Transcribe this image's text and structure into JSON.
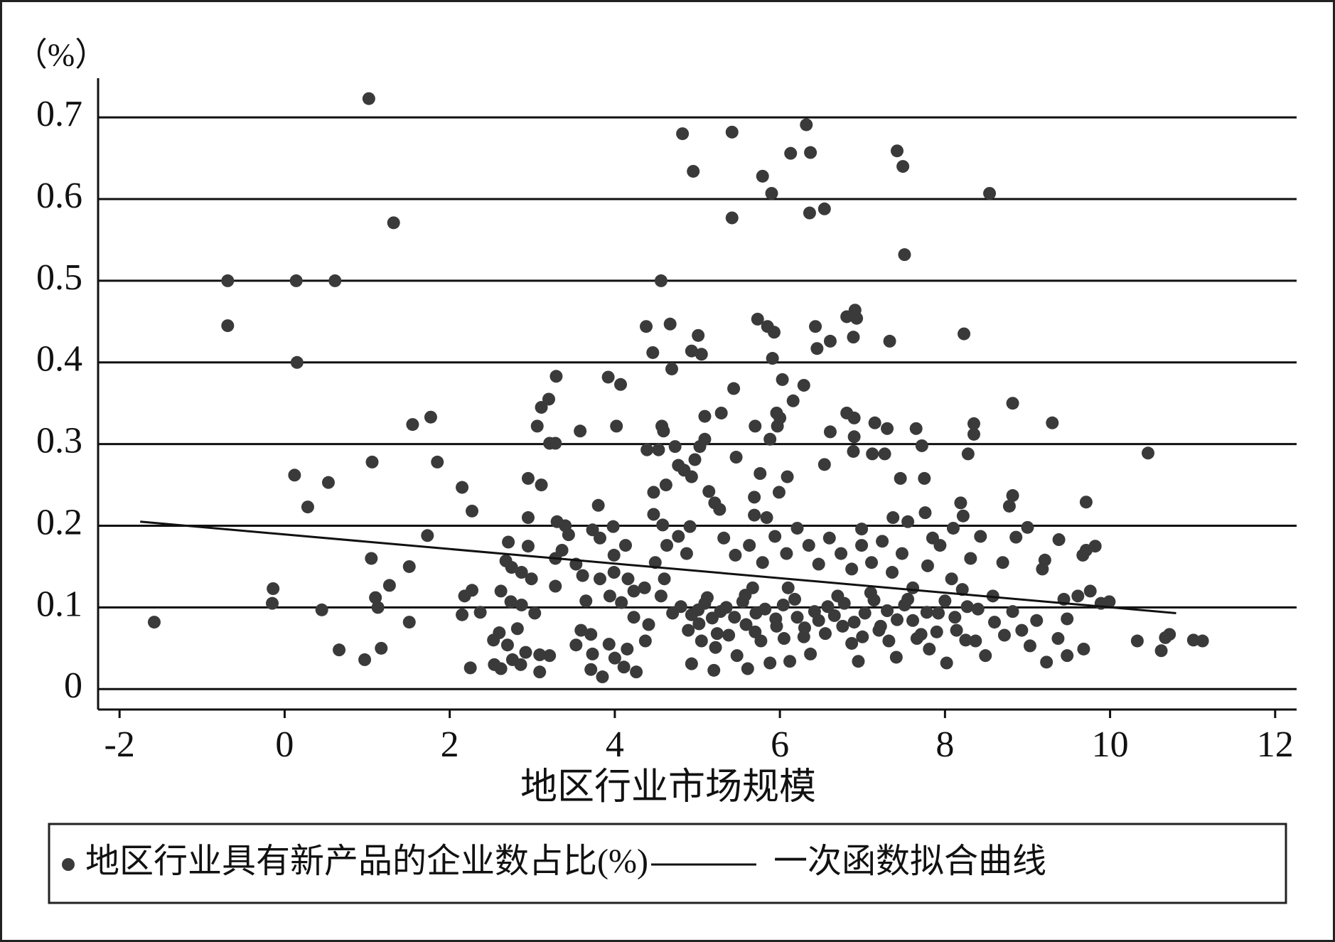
{
  "chart_data": {
    "type": "scatter",
    "y_unit": "（%）",
    "xlabel": "地区行业市场规模",
    "xlim": [
      -2.26,
      12.26
    ],
    "ylim": [
      -0.025,
      0.748
    ],
    "xticks": [
      -2,
      0,
      2,
      4,
      6,
      8,
      10,
      12
    ],
    "yticks": [
      0,
      0.1,
      0.2,
      0.3,
      0.4,
      0.5,
      0.6,
      0.7
    ],
    "grid": true,
    "series": [
      {
        "name": "地区行业具有新产品的企业数占比(%)",
        "type": "scatter",
        "color": "#3a3a3a",
        "x": [
          1.02,
          1.32,
          -0.69,
          0.14,
          0.61,
          -0.69,
          0.15,
          -1.58,
          -0.14,
          -0.15,
          0.12,
          0.28,
          0.53,
          0.45,
          0.66,
          0.97,
          1.06,
          1.05,
          1.1,
          1.13,
          1.17,
          1.27,
          1.51,
          1.51,
          1.55,
          1.77,
          1.85,
          1.73,
          2.15,
          2.27,
          2.25,
          2.18,
          2.15,
          2.27,
          4.82,
          5.42,
          6.32,
          4.95,
          6.13,
          6.37,
          7.42,
          7.49,
          5.79,
          5.9,
          8.54,
          6.54,
          6.36,
          5.42,
          7.51,
          4.56,
          6.91,
          6.93,
          5.73,
          6.81,
          4.67,
          4.38,
          6.43,
          5.85,
          5.93,
          5.01,
          8.23,
          6.61,
          7.33,
          6.89,
          4.93,
          4.46,
          5.05,
          6.45,
          5.91,
          4.69,
          3.29,
          3.92,
          4.07,
          6.03,
          6.29,
          5.44,
          3.2,
          6.16,
          3.11,
          8.82,
          5.29,
          5.96,
          6.81,
          5.09,
          6.0,
          6.9,
          9.3,
          7.15,
          3.06,
          4.02,
          4.57,
          5.7,
          5.97,
          7.3,
          7.65,
          8.35,
          3.58,
          4.59,
          6.61,
          8.35,
          6.9,
          5.88,
          5.09,
          3.21,
          3.28,
          7.72,
          4.73,
          5.03,
          4.39,
          4.53,
          10.46,
          6.89,
          7.12,
          7.27,
          8.28,
          4.97,
          5.47,
          4.77,
          6.54,
          4.84,
          2.95,
          3.11,
          4.93,
          5.76,
          6.09,
          7.46,
          7.75,
          4.62,
          4.47,
          5.14,
          5.99,
          8.82,
          5.69,
          9.71,
          8.19,
          5.21,
          3.8,
          5.27,
          8.78,
          4.47,
          8.22,
          7.76,
          5.69,
          5.84,
          7.37,
          7.55,
          9.0,
          6.99,
          9.38,
          8.86,
          10.33,
          10.62,
          10.67,
          10.72,
          11.01,
          11.12,
          9.99,
          9.89,
          9.82,
          9.71,
          9.67,
          9.76,
          9.61,
          9.44,
          9.48,
          9.68,
          9.48,
          9.23,
          9.37,
          9.21,
          9.18,
          2.54,
          2.62,
          2.76,
          2.86,
          3.09,
          3.09,
          3.21,
          2.92,
          2.53,
          2.6,
          2.7,
          2.82,
          2.37,
          2.71,
          2.68,
          2.75,
          2.87,
          2.95,
          2.95,
          2.99,
          2.62,
          2.74,
          2.87,
          3.03,
          3.28,
          3.36,
          3.4,
          3.3,
          3.28,
          3.44,
          3.53,
          3.61,
          3.65,
          3.59,
          3.53,
          3.71,
          3.73,
          3.71,
          3.85,
          3.93,
          4.0,
          4.11,
          4.26,
          4.15,
          4.37,
          4.41,
          4.23,
          4.08,
          3.94,
          3.82,
          3.99,
          4.16,
          3.99,
          3.82,
          3.73,
          3.98,
          4.13,
          4.23,
          4.36,
          4.56,
          4.6,
          4.49,
          4.63,
          4.58,
          4.77,
          4.91,
          4.87,
          4.7,
          4.8,
          4.93,
          5.01,
          5.09,
          5.18,
          5.28,
          4.89,
          5.05,
          5.22,
          4.93,
          5.2,
          5.38,
          5.48,
          5.59,
          5.55,
          5.67,
          5.71,
          5.77,
          5.61,
          5.88,
          5.96,
          6.04,
          6.1,
          6.21,
          6.29,
          6.12,
          6.37,
          6.47,
          6.58,
          6.7,
          6.76,
          6.87,
          6.95,
          7.03,
          7.14,
          7.22,
          7.32,
          7.41,
          7.51,
          7.61,
          7.71,
          7.81,
          7.92,
          8.02,
          8.14,
          8.27,
          8.37,
          8.49,
          8.6,
          8.72,
          8.82,
          8.93,
          9.03,
          9.11,
          5.32,
          5.46,
          5.63,
          5.79,
          5.94,
          6.08,
          6.21,
          6.35,
          6.47,
          6.6,
          6.74,
          6.87,
          6.99,
          7.11,
          7.24,
          7.36,
          7.48,
          7.61,
          7.79,
          7.94,
          8.08,
          8.21,
          8.31,
          8.43,
          8.58,
          8.7,
          8.1,
          7.85,
          5.02,
          5.12,
          5.24,
          5.35,
          5.45,
          5.58,
          5.7,
          5.82,
          5.95,
          6.05,
          6.18,
          6.3,
          6.42,
          6.55,
          6.66,
          6.78,
          6.9,
          7.0,
          7.1,
          7.2,
          7.3,
          7.42,
          7.55,
          7.66,
          7.78,
          7.9,
          8.0,
          8.12,
          8.25,
          8.4
        ],
        "values": [
          0.723,
          0.571,
          0.5,
          0.5,
          0.5,
          0.445,
          0.4,
          0.082,
          0.123,
          0.105,
          0.262,
          0.223,
          0.253,
          0.097,
          0.048,
          0.036,
          0.278,
          0.16,
          0.112,
          0.1,
          0.05,
          0.127,
          0.15,
          0.082,
          0.324,
          0.333,
          0.278,
          0.188,
          0.247,
          0.218,
          0.026,
          0.114,
          0.091,
          0.121,
          0.68,
          0.682,
          0.691,
          0.634,
          0.656,
          0.657,
          0.659,
          0.64,
          0.628,
          0.607,
          0.607,
          0.588,
          0.583,
          0.577,
          0.532,
          0.5,
          0.464,
          0.454,
          0.453,
          0.456,
          0.447,
          0.444,
          0.444,
          0.444,
          0.437,
          0.433,
          0.435,
          0.426,
          0.426,
          0.431,
          0.414,
          0.412,
          0.41,
          0.417,
          0.405,
          0.392,
          0.383,
          0.382,
          0.373,
          0.379,
          0.372,
          0.368,
          0.355,
          0.353,
          0.345,
          0.35,
          0.338,
          0.338,
          0.338,
          0.334,
          0.332,
          0.332,
          0.326,
          0.326,
          0.322,
          0.322,
          0.322,
          0.322,
          0.322,
          0.319,
          0.319,
          0.325,
          0.316,
          0.316,
          0.315,
          0.312,
          0.309,
          0.306,
          0.306,
          0.301,
          0.301,
          0.298,
          0.297,
          0.297,
          0.293,
          0.293,
          0.289,
          0.291,
          0.288,
          0.288,
          0.288,
          0.281,
          0.284,
          0.274,
          0.275,
          0.268,
          0.258,
          0.25,
          0.26,
          0.264,
          0.26,
          0.258,
          0.258,
          0.25,
          0.241,
          0.242,
          0.241,
          0.237,
          0.235,
          0.229,
          0.228,
          0.228,
          0.225,
          0.22,
          0.224,
          0.214,
          0.212,
          0.216,
          0.213,
          0.21,
          0.21,
          0.205,
          0.198,
          0.196,
          0.183,
          0.186,
          0.059,
          0.047,
          0.063,
          0.067,
          0.06,
          0.059,
          0.107,
          0.105,
          0.175,
          0.17,
          0.164,
          0.12,
          0.114,
          0.11,
          0.086,
          0.049,
          0.041,
          0.033,
          0.062,
          0.158,
          0.147,
          0.03,
          0.025,
          0.036,
          0.03,
          0.021,
          0.042,
          0.041,
          0.045,
          0.06,
          0.069,
          0.054,
          0.074,
          0.094,
          0.18,
          0.157,
          0.149,
          0.143,
          0.175,
          0.21,
          0.135,
          0.12,
          0.107,
          0.103,
          0.093,
          0.126,
          0.17,
          0.2,
          0.205,
          0.16,
          0.189,
          0.153,
          0.139,
          0.108,
          0.072,
          0.054,
          0.067,
          0.043,
          0.024,
          0.015,
          0.055,
          0.038,
          0.027,
          0.021,
          0.049,
          0.059,
          0.079,
          0.088,
          0.106,
          0.114,
          0.135,
          0.143,
          0.135,
          0.164,
          0.185,
          0.195,
          0.199,
          0.176,
          0.12,
          0.124,
          0.114,
          0.135,
          0.155,
          0.176,
          0.201,
          0.187,
          0.199,
          0.166,
          0.093,
          0.101,
          0.091,
          0.097,
          0.105,
          0.087,
          0.095,
          0.072,
          0.059,
          0.051,
          0.031,
          0.023,
          0.066,
          0.041,
          0.079,
          0.107,
          0.124,
          0.093,
          0.059,
          0.025,
          0.032,
          0.077,
          0.103,
          0.124,
          0.088,
          0.064,
          0.034,
          0.043,
          0.084,
          0.101,
          0.114,
          0.077,
          0.056,
          0.034,
          0.093,
          0.109,
          0.077,
          0.059,
          0.039,
          0.103,
          0.084,
          0.067,
          0.049,
          0.093,
          0.032,
          0.072,
          0.101,
          0.059,
          0.041,
          0.082,
          0.066,
          0.095,
          0.072,
          0.053,
          0.084,
          0.185,
          0.164,
          0.176,
          0.155,
          0.187,
          0.166,
          0.197,
          0.176,
          0.153,
          0.185,
          0.166,
          0.147,
          0.176,
          0.155,
          0.181,
          0.143,
          0.166,
          0.124,
          0.151,
          0.176,
          0.135,
          0.122,
          0.16,
          0.187,
          0.114,
          0.155,
          0.197,
          0.185,
          0.08,
          0.112,
          0.068,
          0.1,
          0.088,
          0.115,
          0.07,
          0.098,
          0.086,
          0.062,
          0.11,
          0.075,
          0.095,
          0.068,
          0.09,
          0.105,
          0.082,
          0.064,
          0.118,
          0.072,
          0.096,
          0.085,
          0.11,
          0.062,
          0.094,
          0.07,
          0.108,
          0.088,
          0.06,
          0.098
        ]
      },
      {
        "name": "一次函数拟合曲线",
        "type": "line",
        "color": "#111111",
        "x": [
          -1.75,
          10.8
        ],
        "values": [
          0.205,
          0.093
        ]
      }
    ]
  }
}
